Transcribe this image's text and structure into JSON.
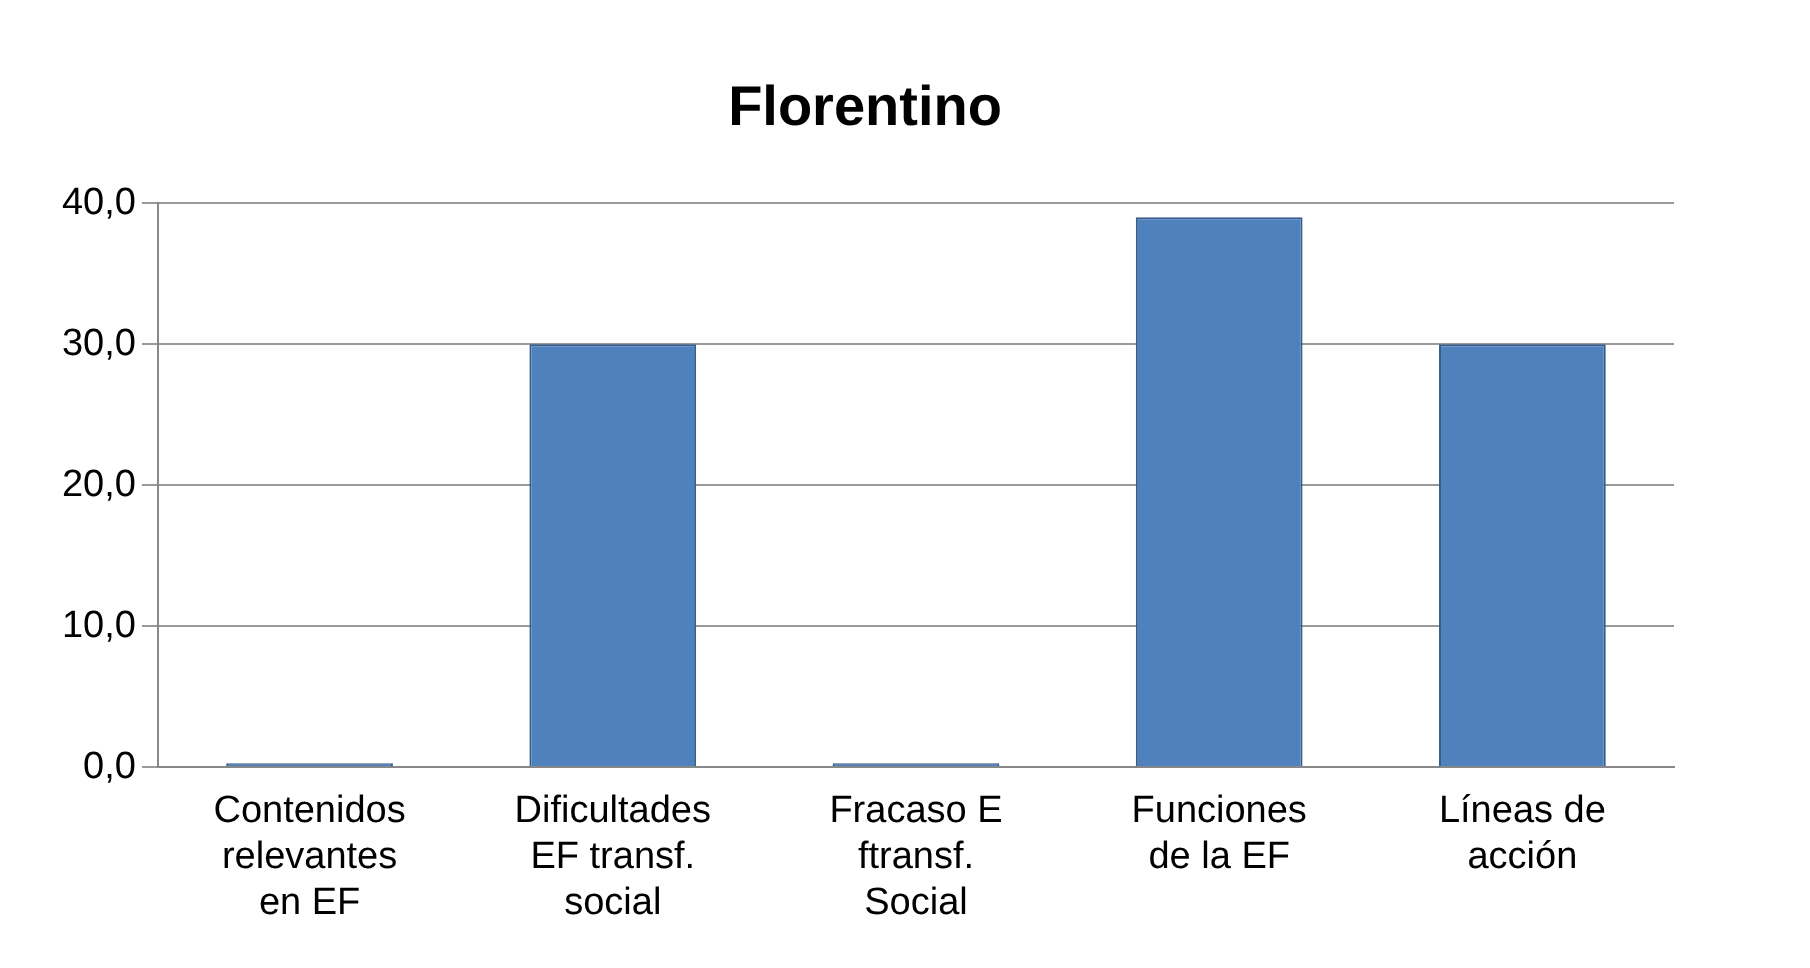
{
  "chart_data": {
    "type": "bar",
    "title": "Florentino",
    "categories": [
      "Contenidos relevantes en EF",
      "Dificultades EF transf. social",
      "Fracaso E ftransf. Social",
      "Funciones de la EF",
      "Líneas de acción"
    ],
    "values": [
      0,
      30,
      0,
      39,
      30
    ],
    "color": "#4f81bd",
    "ylim": [
      0,
      40
    ],
    "yticks": [
      {
        "value": 0,
        "label": "0,0"
      },
      {
        "value": 10,
        "label": "10,0"
      },
      {
        "value": 20,
        "label": "20,0"
      },
      {
        "value": 30,
        "label": "30,0"
      },
      {
        "value": 40,
        "label": "40,0"
      }
    ],
    "grid": "y",
    "legend": false
  }
}
